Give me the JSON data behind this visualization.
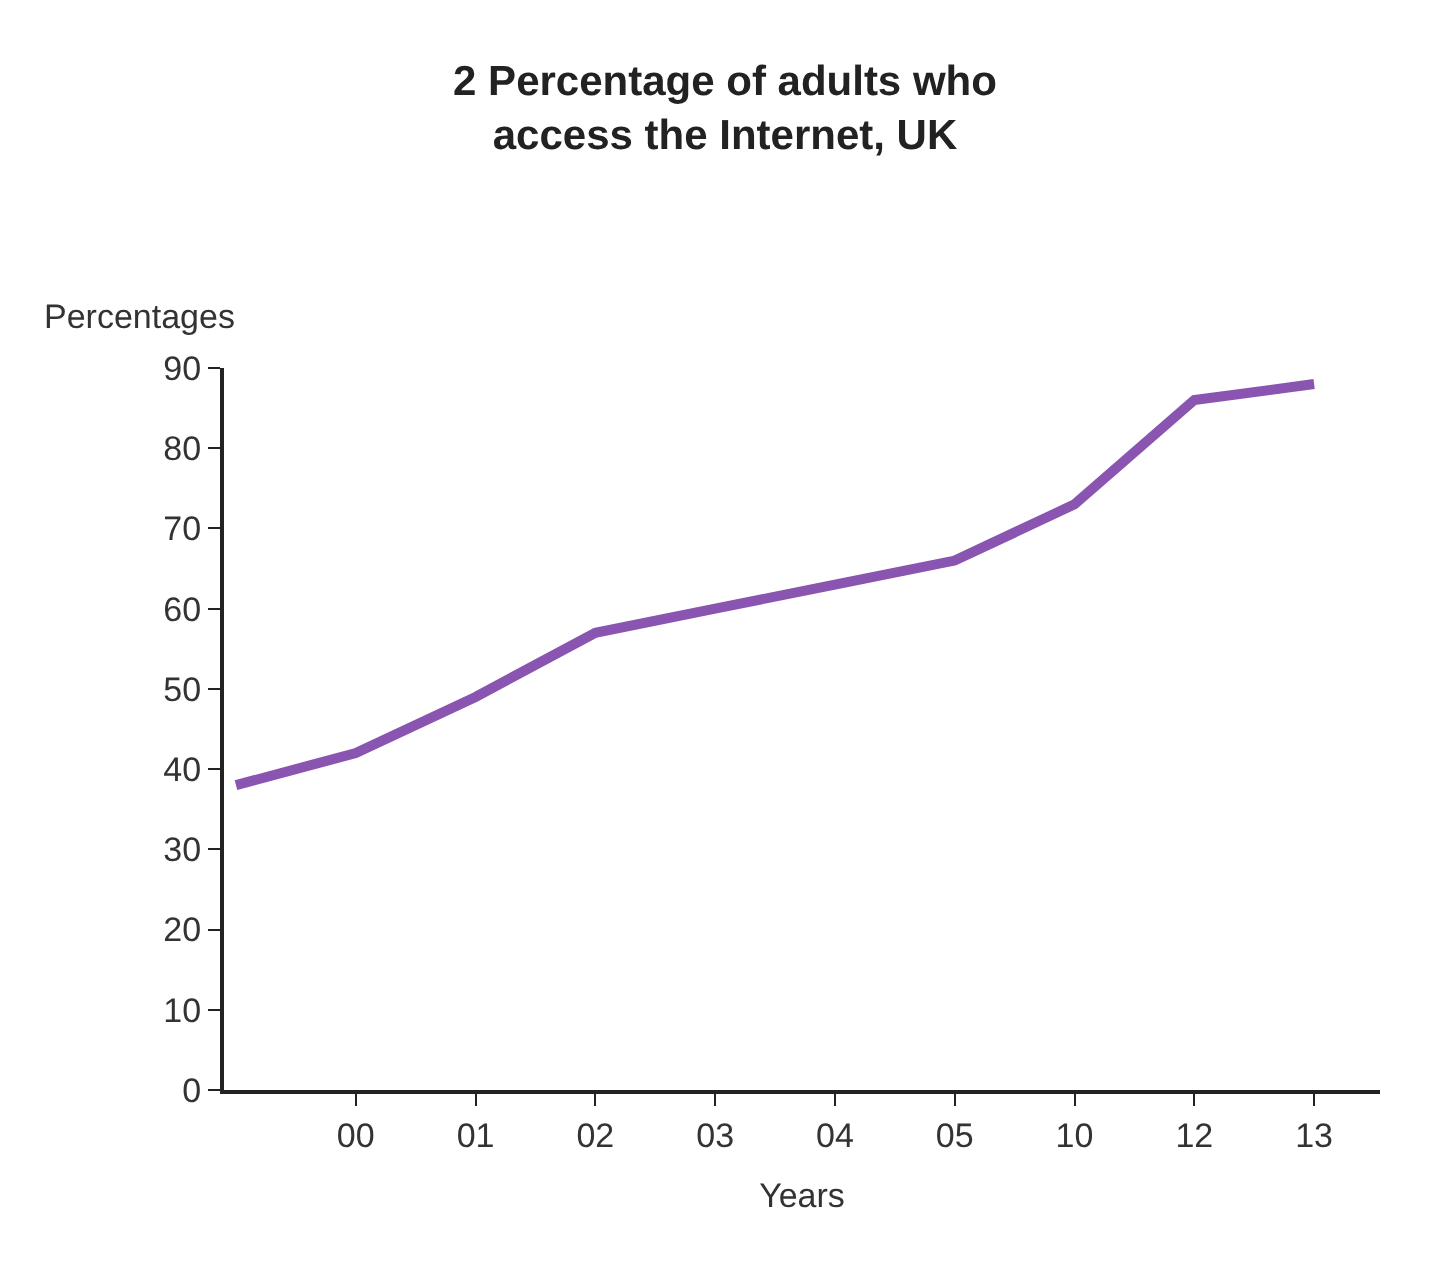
{
  "chart_data": {
    "type": "line",
    "title": "2 Percentage of adults who\naccess the Internet, UK",
    "xlabel": "Years",
    "ylabel": "Percentages",
    "categories": [
      null,
      "00",
      "01",
      "02",
      "03",
      "04",
      "05",
      "10",
      "12",
      "13"
    ],
    "series": [
      {
        "color": "#8a55b0",
        "values": [
          38,
          42,
          49,
          57,
          60,
          63,
          66,
          73,
          86,
          88
        ]
      }
    ],
    "ylim": [
      0,
      90
    ],
    "yticks": [
      0,
      10,
      20,
      30,
      40,
      50,
      60,
      70,
      80,
      90
    ],
    "marker": "none",
    "line_style": "solid"
  }
}
